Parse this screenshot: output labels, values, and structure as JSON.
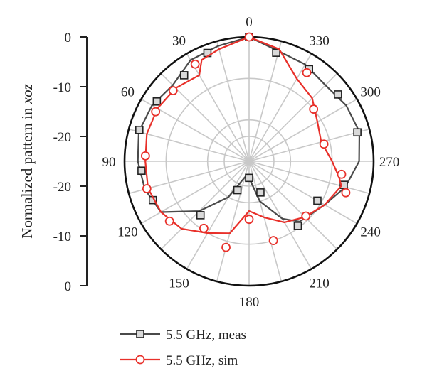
{
  "chart_data": {
    "type": "line",
    "polar": true,
    "ylabel_prefix": "Normalized pattern in ",
    "ylabel_var": "xoz",
    "r_tick_labels": [
      "0",
      "-10",
      "-20",
      "-20",
      "-10",
      "0"
    ],
    "angle_labels": [
      {
        "deg": 0,
        "text": "0"
      },
      {
        "deg": 30,
        "text": "30"
      },
      {
        "deg": 60,
        "text": "60"
      },
      {
        "deg": 90,
        "text": "90"
      },
      {
        "deg": 120,
        "text": "120"
      },
      {
        "deg": 150,
        "text": "150"
      },
      {
        "deg": 180,
        "text": "180"
      },
      {
        "deg": 210,
        "text": "210"
      },
      {
        "deg": 240,
        "text": "240"
      },
      {
        "deg": 270,
        "text": "270"
      },
      {
        "deg": 300,
        "text": "300"
      },
      {
        "deg": 330,
        "text": "330"
      }
    ],
    "rlim": [
      -30,
      0
    ],
    "r_grid": [
      -30,
      -20,
      -10,
      0
    ],
    "legend_position": "bottom",
    "series": [
      {
        "name": "5.5 GHz, meas",
        "color": "#4a4a4a",
        "marker": "square",
        "points": [
          [
            0,
            0
          ],
          [
            15,
            -1.2
          ],
          [
            30,
            -1.8
          ],
          [
            45,
            -4
          ],
          [
            60,
            -3
          ],
          [
            75,
            -2.5
          ],
          [
            90,
            -3.2
          ],
          [
            105,
            -4
          ],
          [
            120,
            -5.5
          ],
          [
            135,
            -13
          ],
          [
            150,
            -20
          ],
          [
            165,
            -26
          ],
          [
            180,
            -26
          ],
          [
            195,
            -20
          ],
          [
            210,
            -14
          ],
          [
            220,
            -11
          ],
          [
            240,
            -9
          ],
          [
            255,
            -6
          ],
          [
            270,
            -3.5
          ],
          [
            285,
            -2.5
          ],
          [
            300,
            -3
          ],
          [
            315,
            -4
          ],
          [
            330,
            -3
          ],
          [
            345,
            -2.5
          ],
          [
            360,
            0
          ]
        ],
        "marker_points": [
          [
            0,
            0
          ],
          [
            21,
            -2
          ],
          [
            37,
            -4
          ],
          [
            57,
            -3.5
          ],
          [
            74,
            -2.5
          ],
          [
            95,
            -4
          ],
          [
            112,
            -5
          ],
          [
            138,
            -12.5
          ],
          [
            158,
            -22.5
          ],
          [
            180,
            -26
          ],
          [
            200,
            -22
          ],
          [
            217,
            -10.5
          ],
          [
            240,
            -11
          ],
          [
            256,
            -6.5
          ],
          [
            285,
            -3
          ],
          [
            307,
            -3.2
          ],
          [
            327,
            -3.5
          ],
          [
            346,
            -3
          ]
        ]
      },
      {
        "name": "5.5 GHz, sim",
        "color": "#e8302a",
        "marker": "circle",
        "points": [
          [
            0,
            0
          ],
          [
            15,
            -2
          ],
          [
            25,
            -3
          ],
          [
            30,
            -6
          ],
          [
            45,
            -5
          ],
          [
            60,
            -4.5
          ],
          [
            75,
            -4.5
          ],
          [
            90,
            -5
          ],
          [
            105,
            -4.8
          ],
          [
            120,
            -5.5
          ],
          [
            135,
            -7
          ],
          [
            150,
            -10
          ],
          [
            165,
            -12
          ],
          [
            180,
            -18
          ],
          [
            195,
            -16
          ],
          [
            210,
            -13
          ],
          [
            225,
            -11
          ],
          [
            240,
            -9
          ],
          [
            255,
            -7
          ],
          [
            260,
            -8
          ],
          [
            270,
            -10
          ],
          [
            285,
            -12
          ],
          [
            300,
            -11
          ],
          [
            315,
            -8.5
          ],
          [
            330,
            -7
          ],
          [
            345,
            -2
          ],
          [
            360,
            0
          ]
        ],
        "marker_points": [
          [
            0,
            0
          ],
          [
            29,
            -3.2
          ],
          [
            47,
            -5
          ],
          [
            62,
            -4.5
          ],
          [
            87,
            -5
          ],
          [
            105,
            -4.5
          ],
          [
            127,
            -6
          ],
          [
            146,
            -10.5
          ],
          [
            165,
            -8.5
          ],
          [
            180,
            -16
          ],
          [
            197,
            -10
          ],
          [
            226,
            -11
          ],
          [
            252,
            -5.5
          ],
          [
            262,
            -7.5
          ],
          [
            283,
            -11.5
          ],
          [
            309,
            -10
          ],
          [
            327,
            -4.5
          ]
        ]
      }
    ]
  }
}
